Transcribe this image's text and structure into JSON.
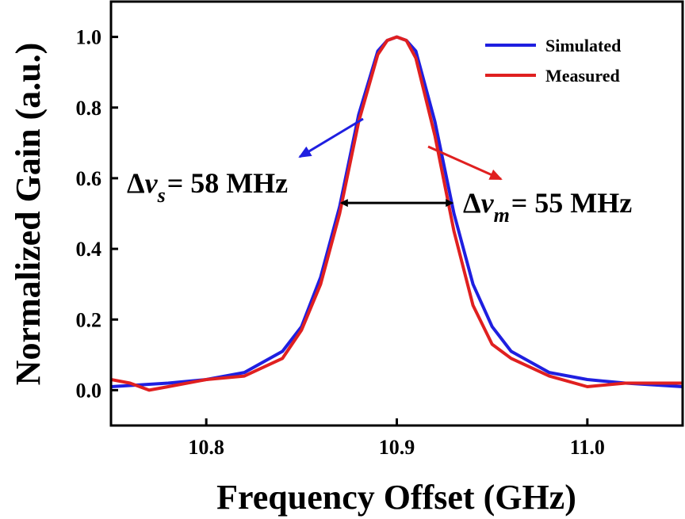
{
  "chart_data": {
    "type": "line",
    "xlabel": "Frequency Offset (GHz)",
    "ylabel": "Normalized Gain (a.u.)",
    "xlim": [
      10.75,
      11.05
    ],
    "ylim": [
      -0.1,
      1.1
    ],
    "x_ticks": [
      {
        "value": 10.8,
        "label": "10.8"
      },
      {
        "value": 10.9,
        "label": "10.9"
      },
      {
        "value": 11.0,
        "label": "11.0"
      }
    ],
    "y_ticks": [
      {
        "value": 0.0,
        "label": "0.0"
      },
      {
        "value": 0.2,
        "label": "0.2"
      },
      {
        "value": 0.4,
        "label": "0.4"
      },
      {
        "value": 0.6,
        "label": "0.6"
      },
      {
        "value": 0.8,
        "label": "0.8"
      },
      {
        "value": 1.0,
        "label": "1.0"
      }
    ],
    "grid": false,
    "legend_position": "top-right",
    "series": [
      {
        "name": "Simulated",
        "color": "#1f1fe0",
        "x": [
          10.75,
          10.78,
          10.8,
          10.82,
          10.84,
          10.85,
          10.86,
          10.87,
          10.88,
          10.89,
          10.895,
          10.9,
          10.905,
          10.91,
          10.92,
          10.93,
          10.94,
          10.95,
          10.96,
          10.98,
          11.0,
          11.02,
          11.05
        ],
        "y": [
          0.01,
          0.02,
          0.03,
          0.05,
          0.11,
          0.18,
          0.32,
          0.52,
          0.78,
          0.96,
          0.99,
          1.0,
          0.99,
          0.96,
          0.76,
          0.5,
          0.3,
          0.18,
          0.11,
          0.05,
          0.03,
          0.02,
          0.01
        ]
      },
      {
        "name": "Measured",
        "color": "#e02020",
        "x": [
          10.75,
          10.76,
          10.77,
          10.78,
          10.8,
          10.82,
          10.84,
          10.85,
          10.86,
          10.87,
          10.88,
          10.89,
          10.895,
          10.9,
          10.905,
          10.91,
          10.92,
          10.93,
          10.94,
          10.95,
          10.96,
          10.98,
          11.0,
          11.02,
          11.04,
          11.05
        ],
        "y": [
          0.03,
          0.02,
          0.0,
          0.01,
          0.03,
          0.04,
          0.09,
          0.17,
          0.3,
          0.5,
          0.76,
          0.95,
          0.99,
          1.0,
          0.99,
          0.94,
          0.72,
          0.45,
          0.24,
          0.13,
          0.09,
          0.04,
          0.01,
          0.02,
          0.02,
          0.02
        ]
      }
    ],
    "annotations": {
      "sim": {
        "delta": "Δ",
        "nu": "ν",
        "sub": "s",
        "rest": "= 58 MHz",
        "color": "#1f1fe0"
      },
      "meas": {
        "delta": "Δ",
        "nu": "ν",
        "sub": "m",
        "rest": "= 55 MHz",
        "color": "#e02020"
      },
      "fwhm": {
        "x1": 10.871,
        "x2": 10.929,
        "y": 0.53
      }
    }
  }
}
